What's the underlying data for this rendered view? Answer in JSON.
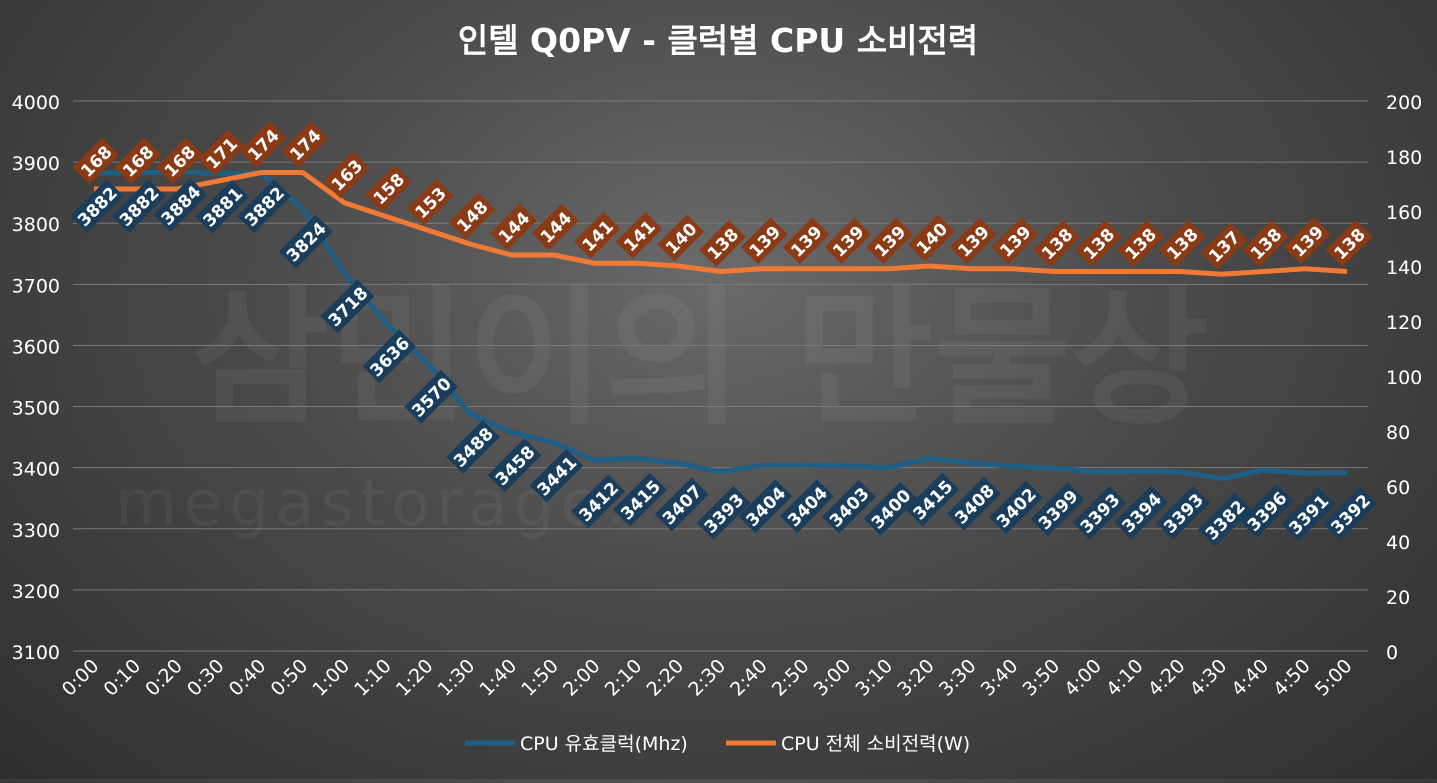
{
  "colors": {
    "clock": "#1f5f85",
    "clock_label_bg": "#1a3d5c",
    "power": "#f07a35",
    "power_label_bg": "#8a3a14",
    "gridline": "#7a7a7a",
    "text": "#ffffff"
  },
  "chart_data": {
    "type": "line",
    "title": "인텔 Q0PV - 클럭별 CPU 소비전력",
    "watermark": [
      "삼민이의 만물상",
      "megastorage."
    ],
    "categories": [
      "0:00",
      "0:10",
      "0:20",
      "0:30",
      "0:40",
      "0:50",
      "1:00",
      "1:10",
      "1:20",
      "1:30",
      "1:40",
      "1:50",
      "2:00",
      "2:10",
      "2:20",
      "2:30",
      "2:40",
      "2:50",
      "3:00",
      "3:10",
      "3:20",
      "3:30",
      "3:40",
      "3:50",
      "4:00",
      "4:10",
      "4:20",
      "4:30",
      "4:40",
      "4:50",
      "5:00"
    ],
    "y_left": {
      "min": 3100,
      "max": 4000,
      "step": 100,
      "ticks": [
        "3100",
        "3200",
        "3300",
        "3400",
        "3500",
        "3600",
        "3700",
        "3800",
        "3900",
        "4000"
      ]
    },
    "y_right": {
      "min": 0,
      "max": 200,
      "step": 20,
      "ticks": [
        "0",
        "20",
        "40",
        "60",
        "80",
        "100",
        "120",
        "140",
        "160",
        "180",
        "200"
      ]
    },
    "grid": true,
    "legend_position": "bottom",
    "series": [
      {
        "name": "CPU 유효클럭(Mhz)",
        "axis": "left",
        "values": [
          3882,
          3882,
          3884,
          3881,
          3882,
          3824,
          3718,
          3636,
          3570,
          3488,
          3458,
          3441,
          3412,
          3415,
          3407,
          3393,
          3404,
          3404,
          3403,
          3400,
          3415,
          3408,
          3402,
          3399,
          3393,
          3394,
          3393,
          3382,
          3396,
          3391,
          3392
        ],
        "labels": [
          "3882",
          "3882",
          "3884",
          "3881",
          "3882",
          "3824",
          "3718",
          "3636",
          "3570",
          "3488",
          "3458",
          "3441",
          "3412",
          "3415",
          "3407",
          "3393",
          "3404",
          "3404",
          "3403",
          "3400",
          "3415",
          "3408",
          "3402",
          "3399",
          "3393",
          "3394",
          "3393",
          "3382",
          "3396",
          "3391",
          "3392"
        ]
      },
      {
        "name": "CPU 전체 소비전력(W)",
        "axis": "right",
        "values": [
          168,
          168,
          168,
          171,
          174,
          174,
          163,
          158,
          153,
          148,
          144,
          144,
          141,
          141,
          140,
          138,
          139,
          139,
          139,
          139,
          140,
          139,
          139,
          138,
          138,
          138,
          138,
          137,
          138,
          139,
          138
        ],
        "labels": [
          "168",
          "168",
          "168",
          "171",
          "174",
          "174",
          "163",
          "158",
          "153",
          "148",
          "144",
          "144",
          "141",
          "141",
          "140",
          "138",
          "139",
          "139",
          "139",
          "139",
          "140",
          "139",
          "139",
          "138",
          "138",
          "138",
          "138",
          "137",
          "138",
          "139",
          "138"
        ]
      }
    ]
  }
}
